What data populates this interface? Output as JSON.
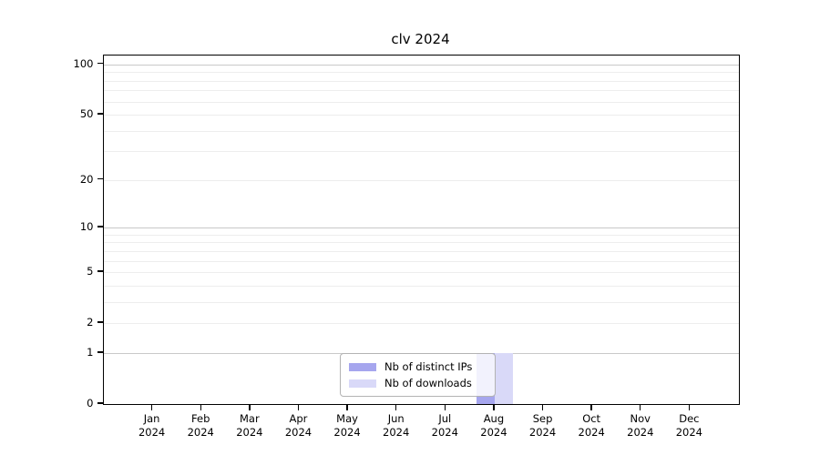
{
  "title": "clv 2024",
  "colors": {
    "distinct_ips": "#a6a6ee",
    "downloads": "#d9d9f8",
    "grid_major": "#c9c9c9",
    "grid_minor": "#ededed",
    "axis": "#000000",
    "legend_border": "#b3b3b3"
  },
  "legend": {
    "items": [
      {
        "label": "Nb of distinct IPs",
        "color": "#a6a6ee"
      },
      {
        "label": "Nb of downloads",
        "color": "#d9d9f8"
      }
    ]
  },
  "x_axis": {
    "months": [
      "Jan",
      "Feb",
      "Mar",
      "Apr",
      "May",
      "Jun",
      "Jul",
      "Aug",
      "Sep",
      "Oct",
      "Nov",
      "Dec"
    ],
    "year": "2024"
  },
  "y_axis": {
    "tick_labels": [
      "100",
      "50",
      "20",
      "10",
      "5",
      "2",
      "1",
      "0"
    ],
    "tick_values": [
      100,
      50,
      20,
      10,
      5,
      2,
      1,
      0
    ]
  },
  "chart_data": {
    "type": "bar",
    "title": "clv 2024",
    "categories": [
      "Jan 2024",
      "Feb 2024",
      "Mar 2024",
      "Apr 2024",
      "May 2024",
      "Jun 2024",
      "Jul 2024",
      "Aug 2024",
      "Sep 2024",
      "Oct 2024",
      "Nov 2024",
      "Dec 2024"
    ],
    "series": [
      {
        "name": "Nb of distinct IPs",
        "color": "#a6a6ee",
        "values": [
          0,
          0,
          0,
          0,
          0,
          0,
          0,
          1,
          0,
          0,
          0,
          0
        ]
      },
      {
        "name": "Nb of downloads",
        "color": "#d9d9f8",
        "values": [
          0,
          0,
          0,
          0,
          0,
          0,
          0,
          1,
          0,
          0,
          0,
          0
        ]
      }
    ],
    "xlabel": "",
    "ylabel": "",
    "yscale": "log(1+y)",
    "ylim": [
      0,
      113
    ],
    "y_ticks": [
      0,
      1,
      2,
      5,
      10,
      20,
      50,
      100
    ],
    "y_major_gridlines": [
      1,
      10,
      100
    ],
    "y_minor_gridlines": [
      2,
      3,
      4,
      5,
      6,
      7,
      8,
      9,
      20,
      30,
      40,
      50,
      60,
      70,
      80,
      90
    ],
    "grid": true,
    "legend_position": "inside bottom-center"
  }
}
